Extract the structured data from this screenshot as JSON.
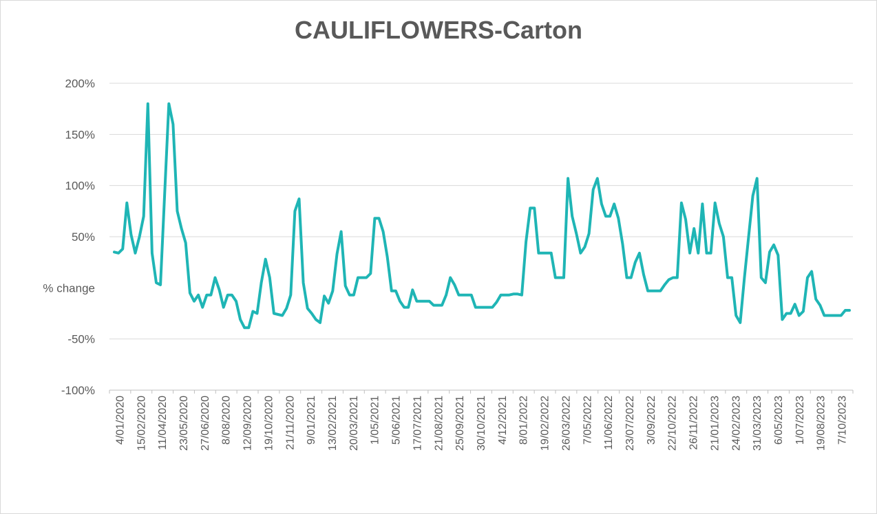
{
  "chart_data": {
    "type": "line",
    "title": "CAULIFLOWERS-Carton",
    "xlabel": "",
    "ylabel": "",
    "ylim": [
      -100,
      200
    ],
    "y_tick_labels": [
      "200%",
      "150%",
      "100%",
      "50%",
      "% change",
      "-50%",
      "-100%"
    ],
    "y_tick_values": [
      200,
      150,
      100,
      50,
      0,
      -50,
      -100
    ],
    "x_tick_labels": [
      "4/01/2020",
      "15/02/2020",
      "11/04/2020",
      "23/05/2020",
      "27/06/2020",
      "8/08/2020",
      "12/09/2020",
      "19/10/2020",
      "21/11/2020",
      "9/01/2021",
      "13/02/2021",
      "20/03/2021",
      "1/05/2021",
      "5/06/2021",
      "17/07/2021",
      "21/08/2021",
      "25/09/2021",
      "30/10/2021",
      "4/12/2021",
      "8/01/2022",
      "19/02/2022",
      "26/03/2022",
      "7/05/2022",
      "11/06/2022",
      "23/07/2022",
      "3/09/2022",
      "22/10/2022",
      "26/11/2022",
      "21/01/2023",
      "24/02/2023",
      "31/03/2023",
      "6/05/2023",
      "1/07/2023",
      "19/08/2023",
      "7/10/2023"
    ],
    "grid": true,
    "legend": "none",
    "line_color": "#1fb5b5",
    "series": [
      {
        "values": [
          35,
          34,
          38,
          83,
          52,
          34,
          50,
          70,
          180,
          34,
          5,
          3,
          92,
          180,
          160,
          75,
          58,
          44,
          -5,
          -13,
          -7,
          -19,
          -7,
          -7,
          10,
          -2,
          -19,
          -7,
          -7,
          -13,
          -31,
          -39,
          -39,
          -23,
          -25,
          5,
          28,
          10,
          -25,
          -26,
          -27,
          -20,
          -7,
          75,
          87,
          5,
          -20,
          -25,
          -31,
          -34,
          -8,
          -15,
          -3,
          33,
          55,
          2,
          -7,
          -7,
          10,
          10,
          10,
          14,
          68,
          68,
          55,
          30,
          -3,
          -3,
          -13,
          -19,
          -19,
          -2,
          -13,
          -13,
          -13,
          -13,
          -17,
          -17,
          -17,
          -7,
          10,
          3,
          -7,
          -7,
          -7,
          -7,
          -19,
          -19,
          -19,
          -19,
          -19,
          -14,
          -7,
          -7,
          -7,
          -6,
          -6,
          -7,
          45,
          78,
          78,
          34,
          34,
          34,
          34,
          10,
          10,
          10,
          107,
          70,
          53,
          34,
          40,
          53,
          96,
          107,
          82,
          70,
          70,
          82,
          68,
          43,
          10,
          10,
          25,
          34,
          13,
          -3,
          -3,
          -3,
          -3,
          3,
          8,
          10,
          10,
          83,
          67,
          34,
          58,
          34,
          82,
          34,
          34,
          83,
          63,
          50,
          10,
          10,
          -27,
          -34,
          10,
          50,
          90,
          107,
          10,
          5,
          35,
          42,
          32,
          -31,
          -25,
          -25,
          -16,
          -27,
          -23,
          10,
          16,
          -11,
          -17,
          -27,
          -27,
          -27,
          -27,
          -27,
          -22,
          -22
        ]
      }
    ]
  }
}
